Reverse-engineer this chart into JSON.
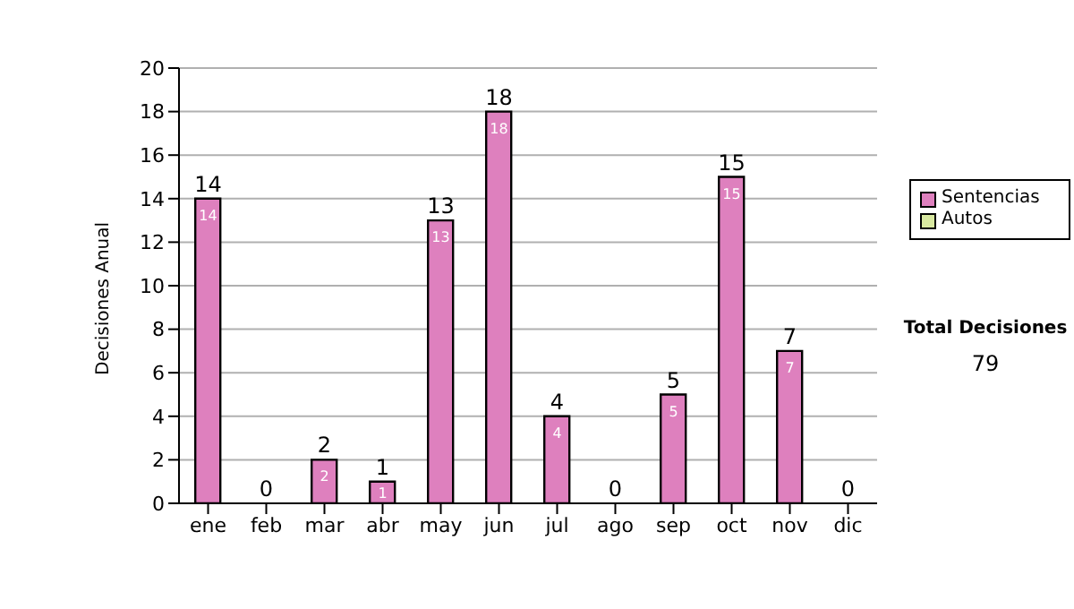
{
  "chart_data": {
    "type": "bar",
    "ylabel": "Decisiones Anual",
    "categories": [
      "ene",
      "feb",
      "mar",
      "abr",
      "may",
      "jun",
      "jul",
      "ago",
      "sep",
      "oct",
      "nov",
      "dic"
    ],
    "series": [
      {
        "name": "Sentencias",
        "color": "#de80be",
        "values": [
          14,
          0,
          2,
          1,
          13,
          18,
          4,
          0,
          5,
          15,
          7,
          0
        ],
        "value_labels": [
          "14",
          null,
          "2",
          "1",
          "13",
          "18",
          "4",
          null,
          "5",
          "15",
          "7",
          null
        ]
      },
      {
        "name": "Autos",
        "color": "#d8e8a0",
        "values": [
          0,
          0,
          0,
          0,
          0,
          0,
          0,
          0,
          0,
          0,
          0,
          0
        ]
      }
    ],
    "stacked": true,
    "totals": [
      "14",
      "0",
      "2",
      "1",
      "13",
      "18",
      "4",
      "0",
      "5",
      "15",
      "7",
      "0"
    ],
    "ylim": [
      0,
      20
    ],
    "yticks": [
      0,
      2,
      4,
      6,
      8,
      10,
      12,
      14,
      16,
      18,
      20
    ],
    "grid": "y",
    "legend": "right",
    "annotations": [
      "Total Decisiones",
      "79"
    ]
  }
}
